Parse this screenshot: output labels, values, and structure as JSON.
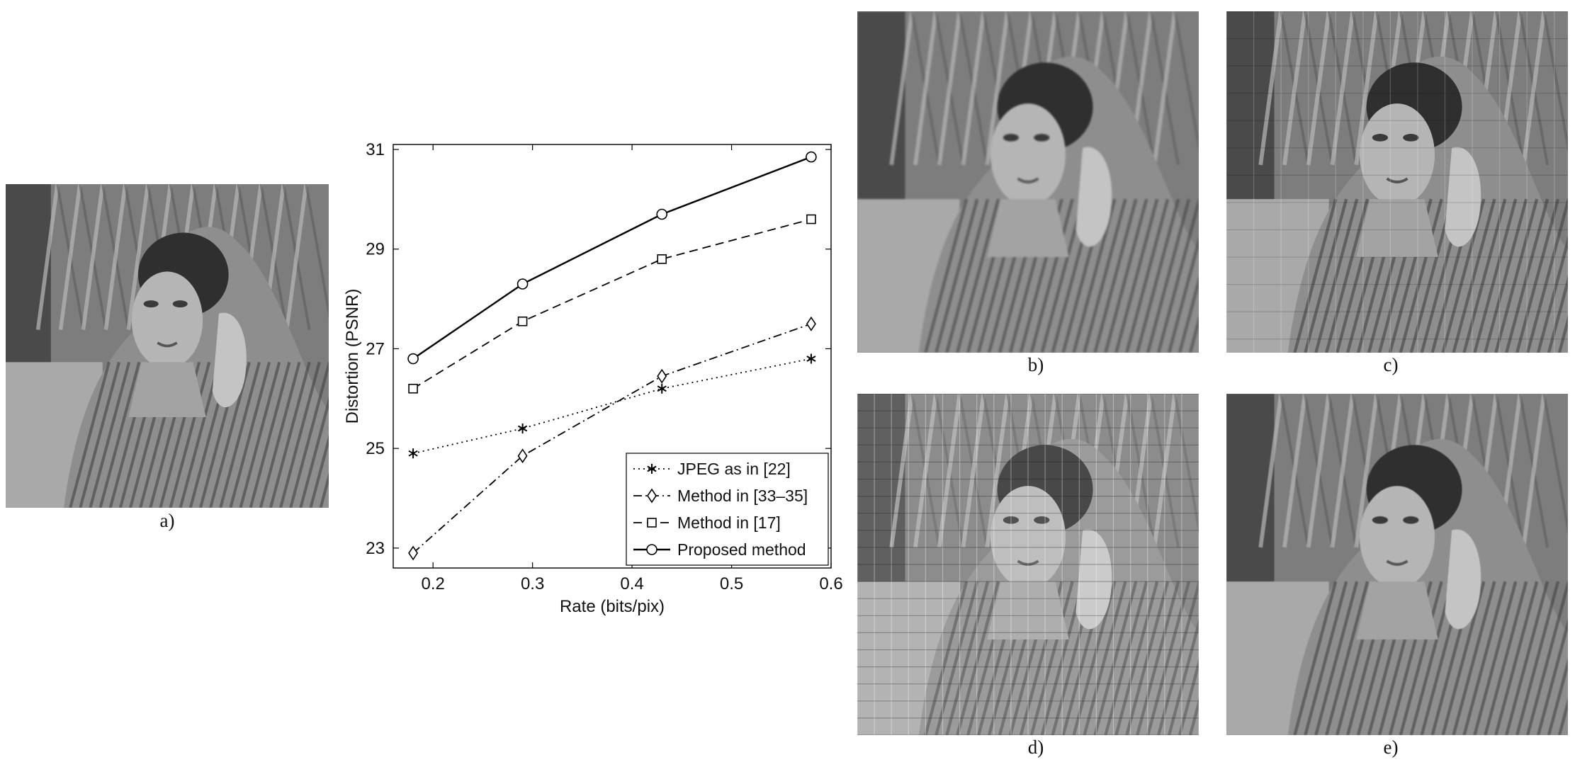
{
  "captions": {
    "a": "a)",
    "b": "b)",
    "c": "c)",
    "d": "d)",
    "e": "e)"
  },
  "chart_data": {
    "type": "line",
    "title": "",
    "xlabel": "Rate (bits/pix)",
    "ylabel": "Distortion (PSNR)",
    "xlim": [
      0.16,
      0.6
    ],
    "ylim": [
      22.6,
      31.1
    ],
    "xticks": [
      "0.2",
      "0.3",
      "0.4",
      "0.5",
      "0.6"
    ],
    "yticks": [
      "23",
      "25",
      "27",
      "29",
      "31"
    ],
    "grid": false,
    "legend_position": "bottom-right",
    "series": [
      {
        "name": "JPEG as in [22]",
        "marker": "star",
        "line": "dotted",
        "x": [
          0.18,
          0.29,
          0.43,
          0.58
        ],
        "y": [
          24.9,
          25.4,
          26.2,
          26.8
        ]
      },
      {
        "name": "Method in [33–35]",
        "marker": "diamond",
        "line": "dashdot",
        "x": [
          0.18,
          0.29,
          0.43,
          0.58
        ],
        "y": [
          22.9,
          24.85,
          26.45,
          27.5
        ]
      },
      {
        "name": "Method in [17]",
        "marker": "square",
        "line": "dashed",
        "x": [
          0.18,
          0.29,
          0.43,
          0.58
        ],
        "y": [
          26.2,
          27.55,
          28.8,
          29.6
        ]
      },
      {
        "name": "Proposed method",
        "marker": "circle",
        "line": "solid",
        "x": [
          0.18,
          0.29,
          0.43,
          0.58
        ],
        "y": [
          26.8,
          28.3,
          29.7,
          30.85
        ]
      }
    ]
  }
}
